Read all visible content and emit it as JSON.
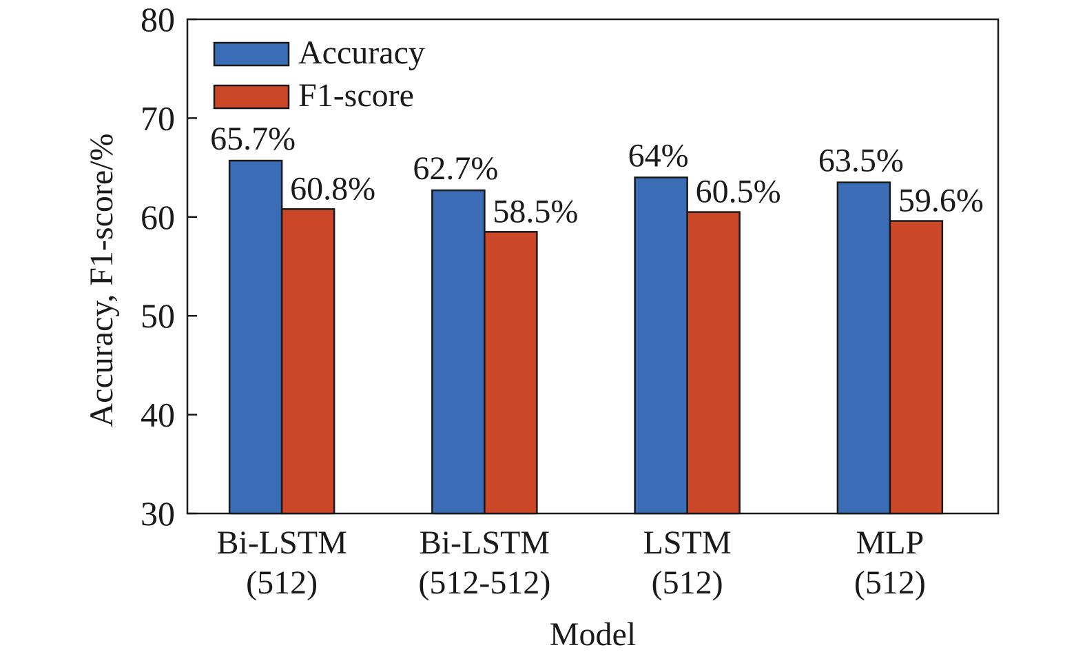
{
  "chart_data": {
    "type": "bar",
    "categories": [
      [
        "Bi-LSTM",
        "(512)"
      ],
      [
        "Bi-LSTM",
        "(512-512)"
      ],
      [
        "LSTM",
        "(512)"
      ],
      [
        "MLP",
        "(512)"
      ]
    ],
    "series": [
      {
        "name": "Accuracy",
        "color": "#3a6db5",
        "values": [
          65.7,
          62.7,
          64,
          63.5
        ],
        "labels": [
          "65.7%",
          "62.7%",
          "64%",
          "63.5%"
        ]
      },
      {
        "name": "F1-score",
        "color": "#cc4628",
        "values": [
          60.8,
          58.5,
          60.5,
          59.6
        ],
        "labels": [
          "60.8%",
          "58.5%",
          "60.5%",
          "59.6%"
        ]
      }
    ],
    "xlabel": "Model",
    "ylabel": "Accuracy, F1-score/%",
    "ylim": [
      30,
      80
    ],
    "yticks": [
      30,
      40,
      50,
      60,
      70,
      80
    ],
    "legend_position": "top-left",
    "grid": false
  }
}
